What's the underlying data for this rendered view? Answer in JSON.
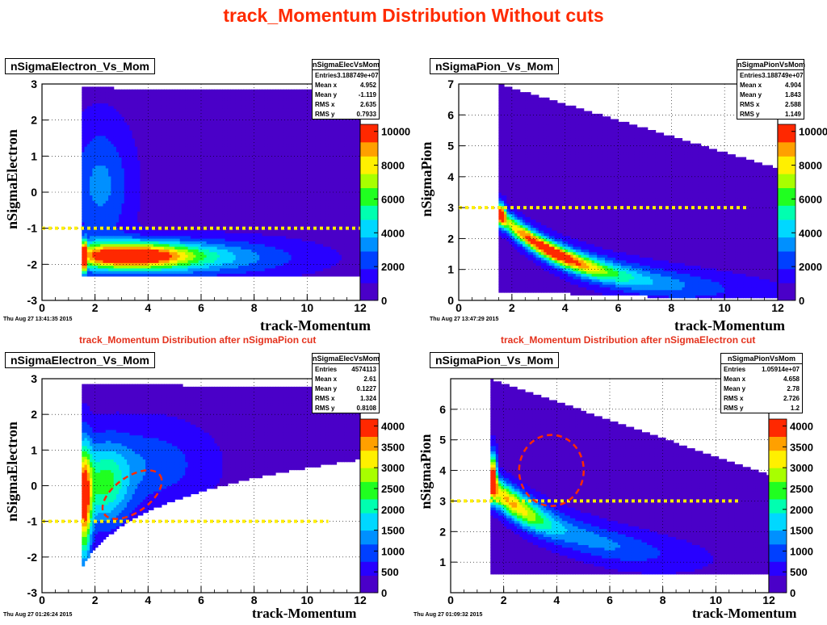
{
  "title": "track_Momentum Distribution Without cuts",
  "captions": {
    "left": "track_Momentum Distribution after nSigmaPion cut",
    "right": "track_Momentum Distribution after nSigmaElectron cut"
  },
  "chart_data": [
    {
      "type": "heatmap",
      "title": "nSigmaElectron_Vs_Mom",
      "xlabel": "track-Momentum",
      "ylabel": "nSigmaElectron",
      "xlim": [
        0,
        12
      ],
      "ylim": [
        -3,
        3
      ],
      "xticks": [
        "0",
        "2",
        "4",
        "6",
        "8",
        "10",
        "12"
      ],
      "yticks": [
        "-3",
        "-2",
        "-1",
        "0",
        "1",
        "2",
        "3"
      ],
      "colorbar_ticks": [
        "0",
        "2000",
        "4000",
        "6000",
        "8000",
        "10000"
      ],
      "timestamp": "Thu Aug 27 13:41:35 2015",
      "cut_line_y": -1,
      "stats": {
        "name": "nSigmaElecVsMom",
        "rows": [
          [
            "Entries",
            "3.188749e+07"
          ],
          [
            "Mean x",
            "4.952"
          ],
          [
            "Mean y",
            "-1.119"
          ],
          [
            "RMS x",
            "2.635"
          ],
          [
            "RMS y",
            "0.7933"
          ]
        ]
      }
    },
    {
      "type": "heatmap",
      "title": "nSigmaPion_Vs_Mom",
      "xlabel": "track-Momentum",
      "ylabel": "nSigmaPion",
      "xlim": [
        0,
        12
      ],
      "ylim": [
        0,
        7
      ],
      "xticks": [
        "0",
        "2",
        "4",
        "6",
        "8",
        "10",
        "12"
      ],
      "yticks": [
        "0",
        "1",
        "2",
        "3",
        "4",
        "5",
        "6",
        "7"
      ],
      "colorbar_ticks": [
        "0",
        "2000",
        "4000",
        "6000",
        "8000",
        "10000"
      ],
      "timestamp": "Thu Aug 27 13:47:29 2015",
      "cut_line_y": 3,
      "stats": {
        "name": "nSigmaPionVsMom",
        "rows": [
          [
            "Entries",
            "3.188749e+07"
          ],
          [
            "Mean x",
            "4.904"
          ],
          [
            "Mean y",
            "1.843"
          ],
          [
            "RMS x",
            "2.588"
          ],
          [
            "RMS y",
            "1.149"
          ]
        ]
      }
    },
    {
      "type": "heatmap",
      "title": "nSigmaElectron_Vs_Mom",
      "xlabel": "track-Momentum",
      "ylabel": "nSigmaElectron",
      "xlim": [
        0,
        12
      ],
      "ylim": [
        -3,
        3
      ],
      "xticks": [
        "0",
        "2",
        "4",
        "6",
        "8",
        "10",
        "12"
      ],
      "yticks": [
        "-3",
        "-2",
        "-1",
        "0",
        "1",
        "2",
        "3"
      ],
      "colorbar_ticks": [
        "0",
        "500",
        "1000",
        "1500",
        "2000",
        "2500",
        "3000",
        "3500",
        "4000"
      ],
      "timestamp": "Thu Aug 27 01:26:24 2015",
      "cut_line_y": -1,
      "stats": {
        "name": "nSigmaElecVsMom",
        "rows": [
          [
            "Entries",
            "4574113"
          ],
          [
            "Mean x",
            "2.61"
          ],
          [
            "Mean y",
            "0.1227"
          ],
          [
            "RMS x",
            "1.324"
          ],
          [
            "RMS y",
            "0.8108"
          ]
        ]
      }
    },
    {
      "type": "heatmap",
      "title": "nSigmaPion_Vs_Mom",
      "xlabel": "track-Momentum",
      "ylabel": "nSigmaPion",
      "xlim": [
        0,
        12
      ],
      "ylim": [
        0,
        7
      ],
      "xticks": [
        "0",
        "2",
        "4",
        "6",
        "8",
        "10",
        "12"
      ],
      "yticks": [
        "1",
        "2",
        "3",
        "4",
        "5",
        "6"
      ],
      "colorbar_ticks": [
        "0",
        "500",
        "1000",
        "1500",
        "2000",
        "2500",
        "3000",
        "3500",
        "4000"
      ],
      "timestamp": "Thu Aug 27 01:09:32 2015",
      "cut_line_y": 3,
      "stats": {
        "name": "nSigmaPionVsMom",
        "rows": [
          [
            "Entries",
            "1.05914e+07"
          ],
          [
            "Mean x",
            "4.658"
          ],
          [
            "Mean y",
            "2.78"
          ],
          [
            "RMS x",
            "2.726"
          ],
          [
            "RMS y",
            "1.2"
          ]
        ]
      }
    }
  ]
}
